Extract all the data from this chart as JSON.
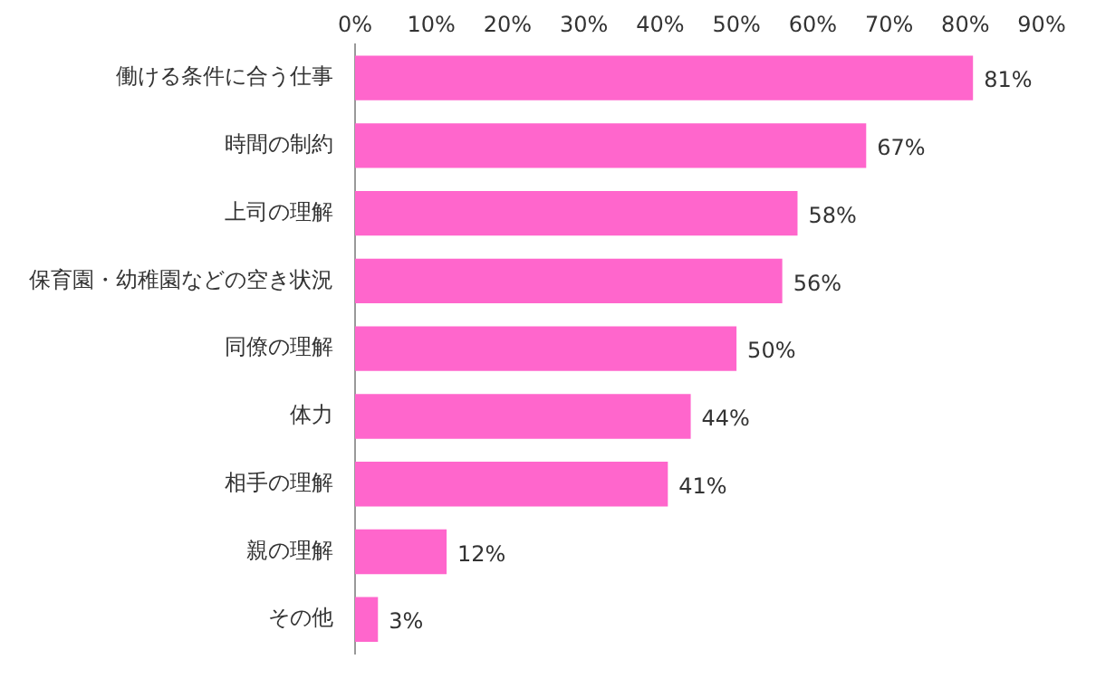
{
  "chart_data": {
    "type": "bar",
    "orientation": "horizontal",
    "categories": [
      "働ける条件に合う仕事",
      "時間の制約",
      "上司の理解",
      "保育園・幼稚園などの空き状況",
      "同僚の理解",
      "体力",
      "相手の理解",
      "親の理解",
      "その他"
    ],
    "values": [
      81,
      67,
      58,
      56,
      50,
      44,
      41,
      12,
      3
    ],
    "value_labels": [
      "81%",
      "67%",
      "58%",
      "56%",
      "50%",
      "44%",
      "41%",
      "12%",
      "3%"
    ],
    "color": "#ff66cc",
    "xlim": [
      0,
      90
    ],
    "xticks": [
      {
        "value": 0,
        "label": "0%"
      },
      {
        "value": 10,
        "label": "10%"
      },
      {
        "value": 20,
        "label": "20%"
      },
      {
        "value": 30,
        "label": "30%"
      },
      {
        "value": 40,
        "label": "40%"
      },
      {
        "value": 50,
        "label": "50%"
      },
      {
        "value": 60,
        "label": "60%"
      },
      {
        "value": 70,
        "label": "70%"
      },
      {
        "value": 80,
        "label": "80%"
      },
      {
        "value": 90,
        "label": "90%"
      }
    ],
    "grid": false,
    "legend": false
  }
}
